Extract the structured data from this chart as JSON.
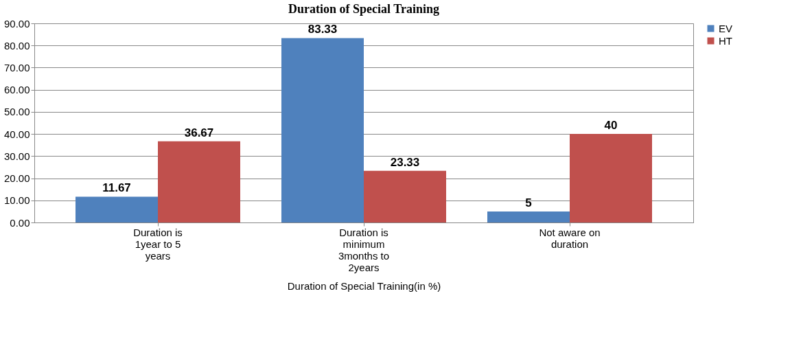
{
  "chart_data": {
    "type": "bar",
    "title": "Duration of Special Training",
    "xlabel": "Duration of Special Training(in %)",
    "categories": [
      "Duration is 1year to 5 years",
      "Duration is minimum 3months to 2years",
      "Not aware on duration"
    ],
    "series": [
      {
        "name": "EV",
        "color": "#4f81bd",
        "values": [
          11.67,
          83.33,
          5
        ],
        "value_labels": [
          "11.67",
          "83.33",
          "5"
        ]
      },
      {
        "name": "HT",
        "color": "#c0504d",
        "values": [
          36.67,
          23.33,
          40
        ],
        "value_labels": [
          "36.67",
          "23.33",
          "40"
        ]
      }
    ],
    "ylim": [
      0,
      90
    ],
    "yticks": [
      {
        "value": 0,
        "label": "0.00"
      },
      {
        "value": 10,
        "label": "10.00"
      },
      {
        "value": 20,
        "label": "20.00"
      },
      {
        "value": 30,
        "label": "30.00"
      },
      {
        "value": 40,
        "label": "40.00"
      },
      {
        "value": 50,
        "label": "50.00"
      },
      {
        "value": 60,
        "label": "60.00"
      },
      {
        "value": 70,
        "label": "70.00"
      },
      {
        "value": 80,
        "label": "80.00"
      },
      {
        "value": 90,
        "label": "90.00"
      }
    ],
    "grid": "y",
    "legend": "right"
  }
}
